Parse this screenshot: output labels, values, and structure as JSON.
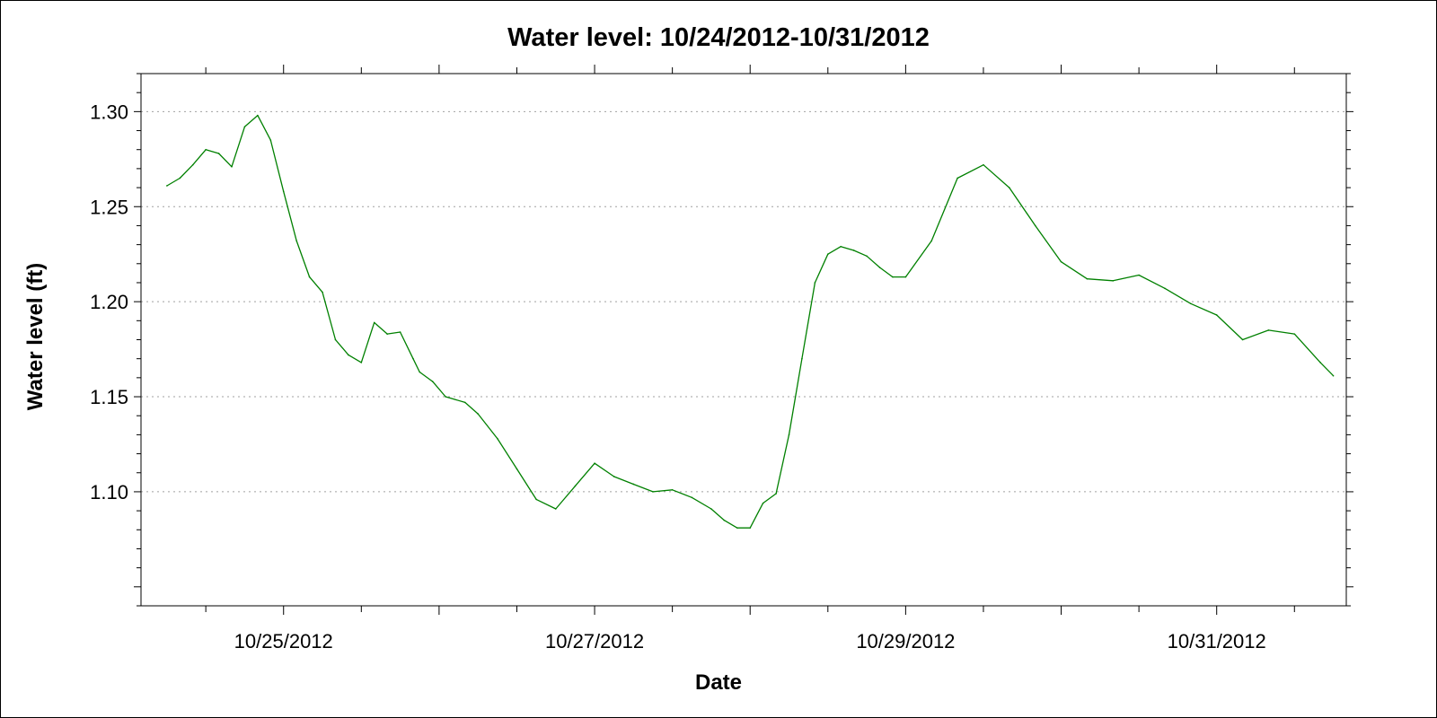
{
  "colors": {
    "series": "#008000",
    "axis": "#000000",
    "grid": "#a0a0a0",
    "background": "#ffffff"
  },
  "chart_data": {
    "type": "line",
    "title": "Water level:  10/24/2012-10/31/2012",
    "xlabel": "Date",
    "ylabel": "Water level (ft)",
    "x_type": "date",
    "xlim": [
      "2012-10-24T02:00",
      "2012-10-31T20:00"
    ],
    "ylim": [
      1.04,
      1.32
    ],
    "yticks": [
      1.1,
      1.15,
      1.2,
      1.25,
      1.3
    ],
    "ytick_labels": [
      "1.10",
      "1.15",
      "1.20",
      "1.25",
      "1.30"
    ],
    "xticks": [
      "2012-10-25",
      "2012-10-27",
      "2012-10-29",
      "2012-10-31"
    ],
    "xtick_labels": [
      "10/25/2012",
      "10/27/2012",
      "10/29/2012",
      "10/31/2012"
    ],
    "x_minor_ticks_every_hours": 12,
    "grid": "horizontal dotted",
    "legend": "none",
    "series": [
      {
        "x": [
          "2012-10-24T06:00",
          "2012-10-24T08:00",
          "2012-10-24T10:00",
          "2012-10-24T12:00",
          "2012-10-24T14:00",
          "2012-10-24T16:00",
          "2012-10-24T18:00",
          "2012-10-24T20:00",
          "2012-10-24T22:00",
          "2012-10-25T00:00",
          "2012-10-25T02:00",
          "2012-10-25T04:00",
          "2012-10-25T06:00",
          "2012-10-25T08:00",
          "2012-10-25T10:00",
          "2012-10-25T12:00",
          "2012-10-25T14:00",
          "2012-10-25T16:00",
          "2012-10-25T18:00",
          "2012-10-25T20:00",
          "2012-10-25T21:00",
          "2012-10-25T23:00",
          "2012-10-26T01:00",
          "2012-10-26T04:00",
          "2012-10-26T06:00",
          "2012-10-26T09:00",
          "2012-10-26T12:00",
          "2012-10-26T15:00",
          "2012-10-26T18:00",
          "2012-10-26T21:00",
          "2012-10-27T00:00",
          "2012-10-27T03:00",
          "2012-10-27T06:00",
          "2012-10-27T09:00",
          "2012-10-27T12:00",
          "2012-10-27T15:00",
          "2012-10-27T18:00",
          "2012-10-27T20:00",
          "2012-10-27T22:00",
          "2012-10-28T00:00",
          "2012-10-28T02:00",
          "2012-10-28T04:00",
          "2012-10-28T06:00",
          "2012-10-28T08:00",
          "2012-10-28T10:00",
          "2012-10-28T12:00",
          "2012-10-28T14:00",
          "2012-10-28T16:00",
          "2012-10-28T18:00",
          "2012-10-28T20:00",
          "2012-10-28T22:00",
          "2012-10-29T00:00",
          "2012-10-29T04:00",
          "2012-10-29T08:00",
          "2012-10-29T12:00",
          "2012-10-29T16:00",
          "2012-10-29T20:00",
          "2012-10-30T00:00",
          "2012-10-30T04:00",
          "2012-10-30T08:00",
          "2012-10-30T12:00",
          "2012-10-30T16:00",
          "2012-10-30T20:00",
          "2012-10-31T00:00",
          "2012-10-31T04:00",
          "2012-10-31T08:00",
          "2012-10-31T12:00",
          "2012-10-31T16:00",
          "2012-10-31T18:00"
        ],
        "y": [
          1.261,
          1.265,
          1.272,
          1.28,
          1.278,
          1.271,
          1.292,
          1.298,
          1.285,
          1.258,
          1.232,
          1.213,
          1.205,
          1.18,
          1.172,
          1.168,
          1.189,
          1.183,
          1.184,
          1.17,
          1.163,
          1.158,
          1.15,
          1.147,
          1.141,
          1.128,
          1.112,
          1.096,
          1.091,
          1.103,
          1.115,
          1.108,
          1.104,
          1.1,
          1.101,
          1.097,
          1.091,
          1.085,
          1.081,
          1.081,
          1.094,
          1.099,
          1.13,
          1.17,
          1.21,
          1.225,
          1.229,
          1.227,
          1.224,
          1.218,
          1.213,
          1.213,
          1.232,
          1.265,
          1.272,
          1.26,
          1.24,
          1.221,
          1.212,
          1.211,
          1.214,
          1.207,
          1.199,
          1.193,
          1.18,
          1.185,
          1.183,
          1.168,
          1.161
        ]
      }
    ]
  }
}
